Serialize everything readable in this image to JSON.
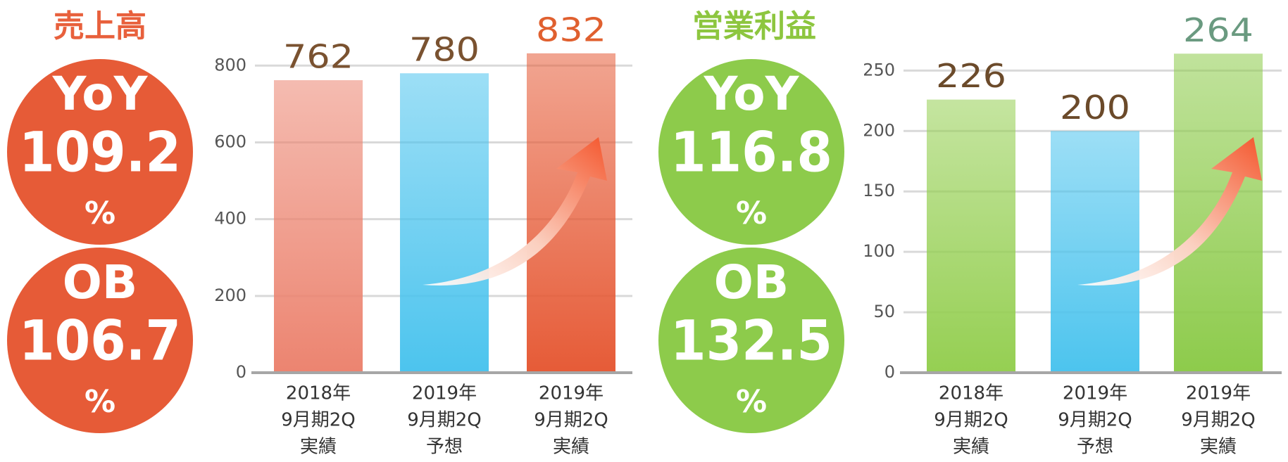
{
  "chart_data": [
    {
      "type": "bar",
      "title": "売上高",
      "title_color": "#e8603c",
      "badges": [
        {
          "label": "YoY",
          "value": 109.2,
          "unit": "%"
        },
        {
          "label": "OB",
          "value": 106.7,
          "unit": "%"
        }
      ],
      "badge_color": "#e65b37",
      "categories": [
        [
          "2018年",
          "9月期2Q",
          "実績"
        ],
        [
          "2019年",
          "9月期2Q",
          "予想"
        ],
        [
          "2019年",
          "9月期2Q",
          "実績"
        ]
      ],
      "values": [
        762,
        780,
        832
      ],
      "colors": [
        "#ec8470",
        "#4cc4ee",
        "#e65b37"
      ],
      "label_colors": [
        "#7a5230",
        "#7a5230",
        "#e0602f"
      ],
      "ylim": [
        0,
        850
      ],
      "yticks": [
        0,
        200,
        400,
        600,
        800
      ],
      "grid": true
    },
    {
      "type": "bar",
      "title": "営業利益",
      "title_color": "#8dc63f",
      "badges": [
        {
          "label": "YoY",
          "value": 116.8,
          "unit": "%"
        },
        {
          "label": "OB",
          "value": 132.5,
          "unit": "%"
        }
      ],
      "badge_color": "#8dcb4b",
      "categories": [
        [
          "2018年",
          "9月期2Q",
          "実績"
        ],
        [
          "2019年",
          "9月期2Q",
          "予想"
        ],
        [
          "2019年",
          "9月期2Q",
          "実績"
        ]
      ],
      "values": [
        226,
        200,
        264
      ],
      "colors": [
        "#95cf52",
        "#4cc4ee",
        "#8dcb4b"
      ],
      "label_colors": [
        "#6b4a2a",
        "#6b4a2a",
        "#6a9a80"
      ],
      "ylim": [
        0,
        270
      ],
      "yticks": [
        0,
        50,
        100,
        150,
        200,
        250
      ],
      "grid": true
    }
  ]
}
